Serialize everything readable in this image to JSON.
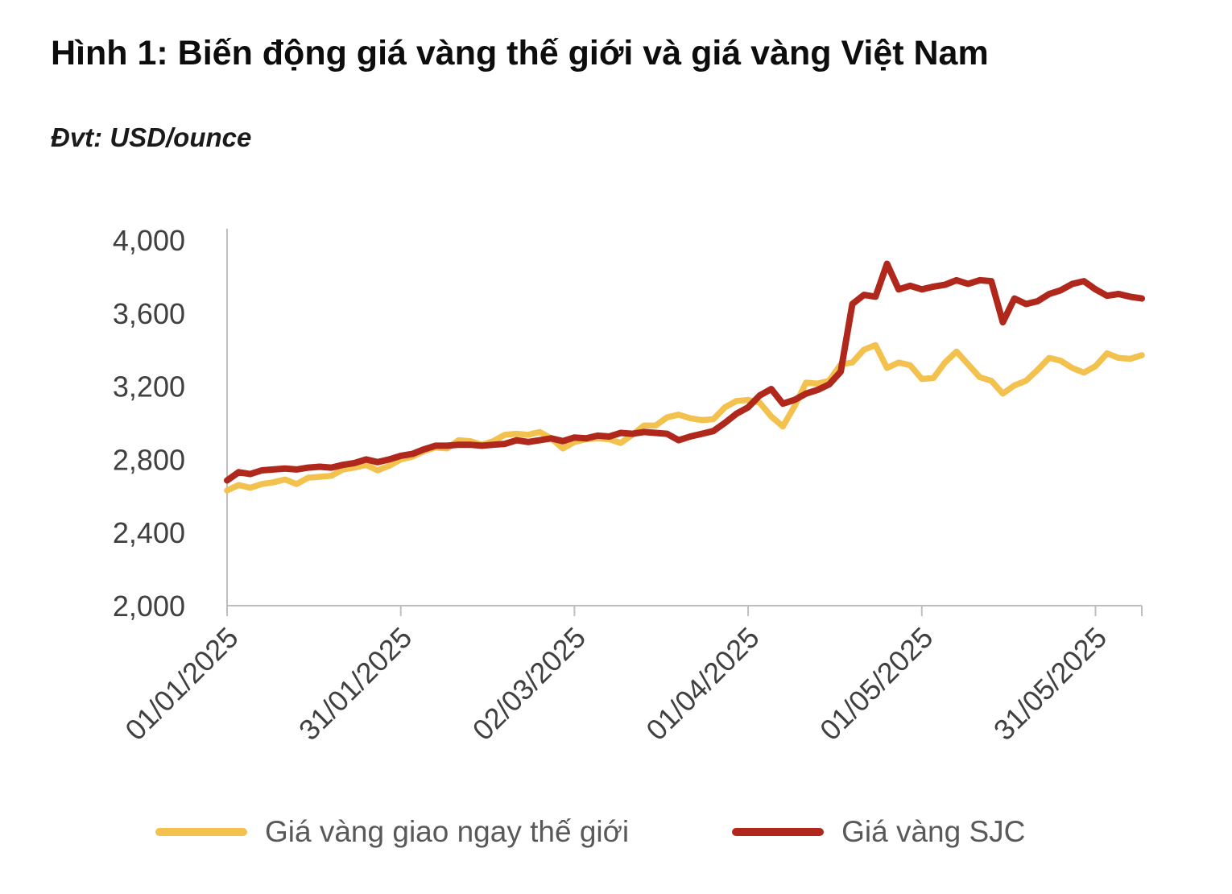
{
  "page": {
    "title": "Hình 1: Biến động giá vàng thế giới và giá vàng Việt Nam",
    "unit_label": "Đvt: USD/ounce"
  },
  "colors": {
    "world_line": "#F2C14E",
    "sjc_line": "#B0271B",
    "axis_line": "#BFBFBF",
    "tick_label": "#404040",
    "legend_text": "#595959",
    "title_text": "#0D0D0D"
  },
  "chart_data": {
    "type": "line",
    "title": "Hình 1: Biến động giá vàng thế giới và giá vàng Việt Nam",
    "unit": "USD/ounce",
    "ylabel": "USD/ounce",
    "xlabel": "",
    "grid": false,
    "legend_position": "bottom",
    "ylim": [
      2000,
      4000
    ],
    "yticks": [
      2000,
      2400,
      2800,
      3200,
      3600,
      4000
    ],
    "ytick_labels": [
      "2,000",
      "2,400",
      "2,800",
      "3,200",
      "3,600",
      "4,000"
    ],
    "xtick_labels": [
      "01/01/2025",
      "31/01/2025",
      "02/03/2025",
      "01/04/2025",
      "01/05/2025",
      "31/05/2025"
    ],
    "xtick_day_index": [
      0,
      30,
      60,
      90,
      120,
      150
    ],
    "x_day_span": 158,
    "sample_interval_days": 2,
    "x_start_date": "01/01/2025",
    "series": [
      {
        "name": "Giá vàng giao ngay thế giới",
        "color": "#F2C14E",
        "values": [
          2630,
          2660,
          2645,
          2665,
          2675,
          2690,
          2665,
          2700,
          2705,
          2710,
          2745,
          2755,
          2770,
          2740,
          2765,
          2800,
          2815,
          2845,
          2865,
          2860,
          2905,
          2900,
          2880,
          2900,
          2935,
          2940,
          2935,
          2950,
          2915,
          2860,
          2895,
          2910,
          2915,
          2910,
          2890,
          2935,
          2985,
          2985,
          3030,
          3045,
          3025,
          3015,
          3020,
          3085,
          3120,
          3125,
          3110,
          3035,
          2980,
          3090,
          3220,
          3215,
          3230,
          3320,
          3330,
          3400,
          3425,
          3300,
          3330,
          3315,
          3240,
          3245,
          3330,
          3390,
          3320,
          3250,
          3230,
          3160,
          3205,
          3230,
          3290,
          3355,
          3340,
          3300,
          3275,
          3310,
          3380,
          3355,
          3350,
          3370
        ]
      },
      {
        "name": "Giá vàng SJC",
        "color": "#B0271B",
        "values": [
          2685,
          2730,
          2720,
          2740,
          2745,
          2750,
          2745,
          2755,
          2760,
          2755,
          2770,
          2780,
          2800,
          2785,
          2800,
          2820,
          2830,
          2855,
          2875,
          2875,
          2880,
          2880,
          2875,
          2880,
          2885,
          2905,
          2895,
          2905,
          2915,
          2900,
          2920,
          2915,
          2930,
          2925,
          2945,
          2940,
          2950,
          2945,
          2940,
          2905,
          2925,
          2940,
          2955,
          3000,
          3050,
          3085,
          3150,
          3185,
          3105,
          3125,
          3160,
          3180,
          3210,
          3280,
          3650,
          3700,
          3690,
          3870,
          3730,
          3750,
          3730,
          3745,
          3755,
          3780,
          3760,
          3780,
          3775,
          3550,
          3680,
          3650,
          3665,
          3705,
          3725,
          3760,
          3775,
          3730,
          3695,
          3705,
          3690,
          3680
        ]
      }
    ]
  }
}
